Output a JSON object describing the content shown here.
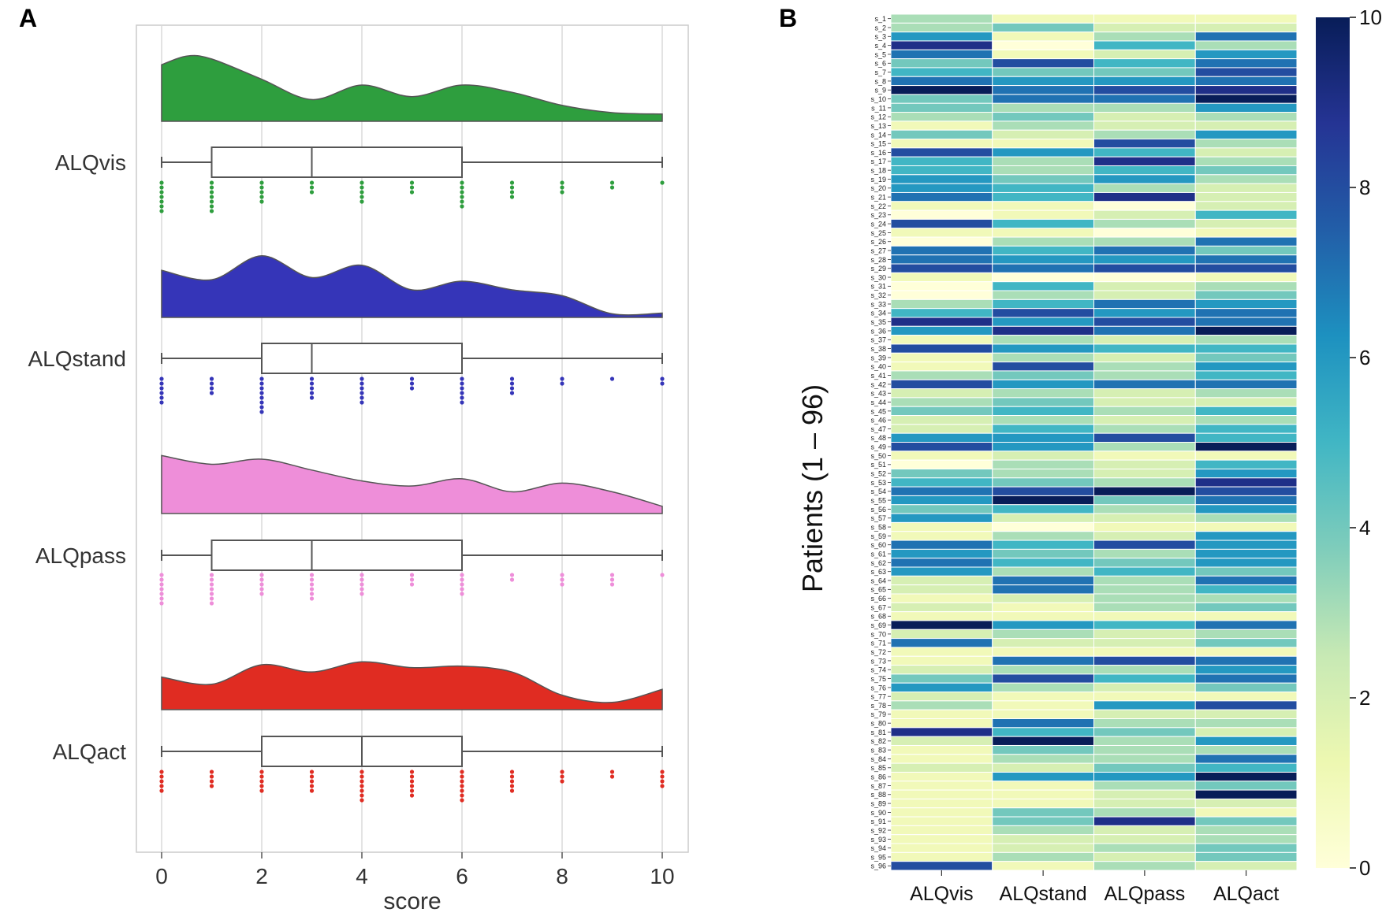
{
  "chart_data": [
    {
      "panel": "A",
      "type": "raincloud",
      "xlabel": "score",
      "xlim": [
        0,
        10
      ],
      "xticks": [
        0,
        2,
        4,
        6,
        8,
        10
      ],
      "grid": true,
      "series": [
        {
          "name": "ALQvis",
          "color": "#2e9e3e",
          "box": {
            "min": 0,
            "q1": 1,
            "median": 3,
            "q3": 6,
            "max": 10
          },
          "density": [
            [
              0,
              0.78
            ],
            [
              0.5,
              0.9
            ],
            [
              1,
              0.86
            ],
            [
              2,
              0.58
            ],
            [
              3,
              0.3
            ],
            [
              4,
              0.5
            ],
            [
              5,
              0.34
            ],
            [
              6,
              0.5
            ],
            [
              7,
              0.4
            ],
            [
              8,
              0.22
            ],
            [
              9,
              0.12
            ],
            [
              10,
              0.1
            ]
          ],
          "counts": [
            7,
            7,
            5,
            3,
            5,
            3,
            6,
            4,
            3,
            2,
            1
          ]
        },
        {
          "name": "ALQstand",
          "color": "#3535b8",
          "box": {
            "min": 0,
            "q1": 2,
            "median": 3,
            "q3": 6,
            "max": 10
          },
          "density": [
            [
              0,
              0.65
            ],
            [
              1,
              0.52
            ],
            [
              2,
              0.85
            ],
            [
              3,
              0.55
            ],
            [
              4,
              0.72
            ],
            [
              5,
              0.38
            ],
            [
              6,
              0.5
            ],
            [
              7,
              0.38
            ],
            [
              8,
              0.3
            ],
            [
              9,
              0.05
            ],
            [
              10,
              0.06
            ]
          ],
          "counts": [
            6,
            4,
            8,
            5,
            6,
            3,
            6,
            4,
            2,
            1,
            2
          ]
        },
        {
          "name": "ALQpass",
          "color": "#ee8ed9",
          "box": {
            "min": 0,
            "q1": 1,
            "median": 3,
            "q3": 6,
            "max": 10
          },
          "density": [
            [
              0,
              0.8
            ],
            [
              1,
              0.68
            ],
            [
              2,
              0.75
            ],
            [
              3,
              0.6
            ],
            [
              4,
              0.45
            ],
            [
              5,
              0.38
            ],
            [
              6,
              0.48
            ],
            [
              7,
              0.3
            ],
            [
              8,
              0.42
            ],
            [
              9,
              0.3
            ],
            [
              10,
              0.1
            ]
          ],
          "counts": [
            7,
            7,
            5,
            6,
            5,
            3,
            5,
            2,
            3,
            3,
            1
          ]
        },
        {
          "name": "ALQact",
          "color": "#e02c22",
          "box": {
            "min": 0,
            "q1": 2,
            "median": 4,
            "q3": 6,
            "max": 10
          },
          "density": [
            [
              0,
              0.45
            ],
            [
              1,
              0.35
            ],
            [
              2,
              0.62
            ],
            [
              3,
              0.52
            ],
            [
              4,
              0.66
            ],
            [
              5,
              0.58
            ],
            [
              6,
              0.6
            ],
            [
              7,
              0.52
            ],
            [
              8,
              0.2
            ],
            [
              9,
              0.1
            ],
            [
              10,
              0.28
            ]
          ],
          "counts": [
            5,
            4,
            5,
            5,
            7,
            6,
            7,
            5,
            3,
            2,
            4
          ]
        }
      ]
    },
    {
      "panel": "B",
      "type": "heatmap",
      "ylabel": "Patients  (1 – 96)",
      "columns": [
        "ALQvis",
        "ALQstand",
        "ALQpass",
        "ALQact"
      ],
      "rows": [
        "s_1",
        "s_2",
        "s_3",
        "s_4",
        "s_5",
        "s_6",
        "s_7",
        "s_8",
        "s_9",
        "s_10",
        "s_11",
        "s_12",
        "s_13",
        "s_14",
        "s_15",
        "s_16",
        "s_17",
        "s_18",
        "s_19",
        "s_20",
        "s_21",
        "s_22",
        "s_23",
        "s_24",
        "s_25",
        "s_26",
        "s_27",
        "s_28",
        "s_29",
        "s_30",
        "s_31",
        "s_32",
        "s_33",
        "s_34",
        "s_35",
        "s_36",
        "s_37",
        "s_38",
        "s_39",
        "s_40",
        "s_41",
        "s_42",
        "s_43",
        "s_44",
        "s_45",
        "s_46",
        "s_47",
        "s_48",
        "s_49",
        "s_50",
        "s_51",
        "s_52",
        "s_53",
        "s_54",
        "s_55",
        "s_56",
        "s_57",
        "s_58",
        "s_59",
        "s_60",
        "s_61",
        "s_62",
        "s_63",
        "s_64",
        "s_65",
        "s_66",
        "s_67",
        "s_68",
        "s_69",
        "s_70",
        "s_71",
        "s_72",
        "s_73",
        "s_74",
        "s_75",
        "s_76",
        "s_77",
        "s_78",
        "s_79",
        "s_80",
        "s_81",
        "s_82",
        "s_83",
        "s_84",
        "s_85",
        "s_86",
        "s_87",
        "s_88",
        "s_89",
        "s_90",
        "s_91",
        "s_92",
        "s_93",
        "s_94",
        "s_95",
        "s_96"
      ],
      "values": [
        [
          3,
          1,
          1,
          1
        ],
        [
          3,
          4,
          2,
          2
        ],
        [
          6,
          1,
          3,
          7
        ],
        [
          9,
          0,
          5,
          3
        ],
        [
          7,
          1,
          2,
          6
        ],
        [
          4,
          8,
          5,
          7
        ],
        [
          5,
          4,
          4,
          8
        ],
        [
          7,
          6,
          6,
          7
        ],
        [
          10,
          7,
          8,
          9
        ],
        [
          4,
          7,
          7,
          10
        ],
        [
          4,
          3,
          3,
          6
        ],
        [
          3,
          4,
          2,
          3
        ],
        [
          1,
          3,
          2,
          2
        ],
        [
          4,
          2,
          3,
          6
        ],
        [
          1,
          1,
          8,
          3
        ],
        [
          8,
          6,
          5,
          2
        ],
        [
          5,
          3,
          9,
          3
        ],
        [
          5,
          3,
          5,
          4
        ],
        [
          6,
          4,
          6,
          3
        ],
        [
          6,
          5,
          3,
          2
        ],
        [
          7,
          5,
          9,
          2
        ],
        [
          1,
          1,
          0,
          2
        ],
        [
          0,
          1,
          2,
          5
        ],
        [
          8,
          5,
          3,
          2
        ],
        [
          1,
          1,
          0,
          1
        ],
        [
          0,
          3,
          3,
          7
        ],
        [
          7,
          5,
          7,
          4
        ],
        [
          7,
          6,
          6,
          7
        ],
        [
          8,
          7,
          8,
          8
        ],
        [
          1,
          0,
          0,
          1
        ],
        [
          0,
          5,
          2,
          3
        ],
        [
          0,
          3,
          2,
          4
        ],
        [
          3,
          5,
          7,
          6
        ],
        [
          5,
          8,
          6,
          7
        ],
        [
          9,
          6,
          8,
          7
        ],
        [
          6,
          9,
          7,
          10
        ],
        [
          1,
          3,
          2,
          3
        ],
        [
          8,
          6,
          5,
          5
        ],
        [
          1,
          3,
          2,
          4
        ],
        [
          1,
          8,
          3,
          6
        ],
        [
          3,
          4,
          3,
          5
        ],
        [
          8,
          6,
          7,
          7
        ],
        [
          2,
          3,
          2,
          3
        ],
        [
          3,
          4,
          2,
          2
        ],
        [
          4,
          5,
          3,
          5
        ],
        [
          2,
          3,
          2,
          3
        ],
        [
          2,
          5,
          3,
          5
        ],
        [
          6,
          6,
          8,
          5
        ],
        [
          8,
          6,
          3,
          10
        ],
        [
          1,
          2,
          1,
          1
        ],
        [
          0,
          3,
          2,
          5
        ],
        [
          4,
          3,
          2,
          6
        ],
        [
          5,
          4,
          3,
          9
        ],
        [
          7,
          8,
          10,
          8
        ],
        [
          6,
          10,
          4,
          7
        ],
        [
          4,
          5,
          3,
          6
        ],
        [
          6,
          2,
          2,
          3
        ],
        [
          1,
          0,
          1,
          1
        ],
        [
          1,
          3,
          2,
          6
        ],
        [
          7,
          5,
          8,
          6
        ],
        [
          6,
          4,
          3,
          6
        ],
        [
          7,
          5,
          4,
          6
        ],
        [
          6,
          3,
          5,
          4
        ],
        [
          2,
          7,
          3,
          7
        ],
        [
          2,
          7,
          3,
          5
        ],
        [
          1,
          2,
          3,
          3
        ],
        [
          2,
          1,
          3,
          4
        ],
        [
          1,
          1,
          1,
          1
        ],
        [
          10,
          6,
          5,
          7
        ],
        [
          2,
          3,
          2,
          3
        ],
        [
          7,
          2,
          2,
          4
        ],
        [
          1,
          1,
          1,
          1
        ],
        [
          1,
          7,
          8,
          7
        ],
        [
          2,
          3,
          3,
          6
        ],
        [
          4,
          8,
          5,
          7
        ],
        [
          6,
          3,
          2,
          4
        ],
        [
          2,
          1,
          1,
          1
        ],
        [
          3,
          1,
          6,
          8
        ],
        [
          1,
          1,
          2,
          2
        ],
        [
          1,
          7,
          3,
          3
        ],
        [
          9,
          5,
          4,
          2
        ],
        [
          2,
          10,
          3,
          6
        ],
        [
          1,
          4,
          3,
          3
        ],
        [
          1,
          3,
          3,
          7
        ],
        [
          2,
          2,
          4,
          5
        ],
        [
          1,
          6,
          6,
          10
        ],
        [
          1,
          1,
          3,
          4
        ],
        [
          1,
          1,
          2,
          10
        ],
        [
          1,
          1,
          2,
          2
        ],
        [
          1,
          4,
          3,
          1
        ],
        [
          1,
          4,
          9,
          4
        ],
        [
          1,
          3,
          2,
          3
        ],
        [
          1,
          2,
          2,
          3
        ],
        [
          1,
          2,
          3,
          4
        ],
        [
          1,
          3,
          2,
          4
        ],
        [
          8,
          1,
          3,
          2
        ]
      ],
      "colorbar": {
        "min": 0,
        "max": 10,
        "ticks": [
          0,
          2,
          4,
          6,
          8,
          10
        ],
        "colormap": "YlGnBu"
      }
    }
  ]
}
